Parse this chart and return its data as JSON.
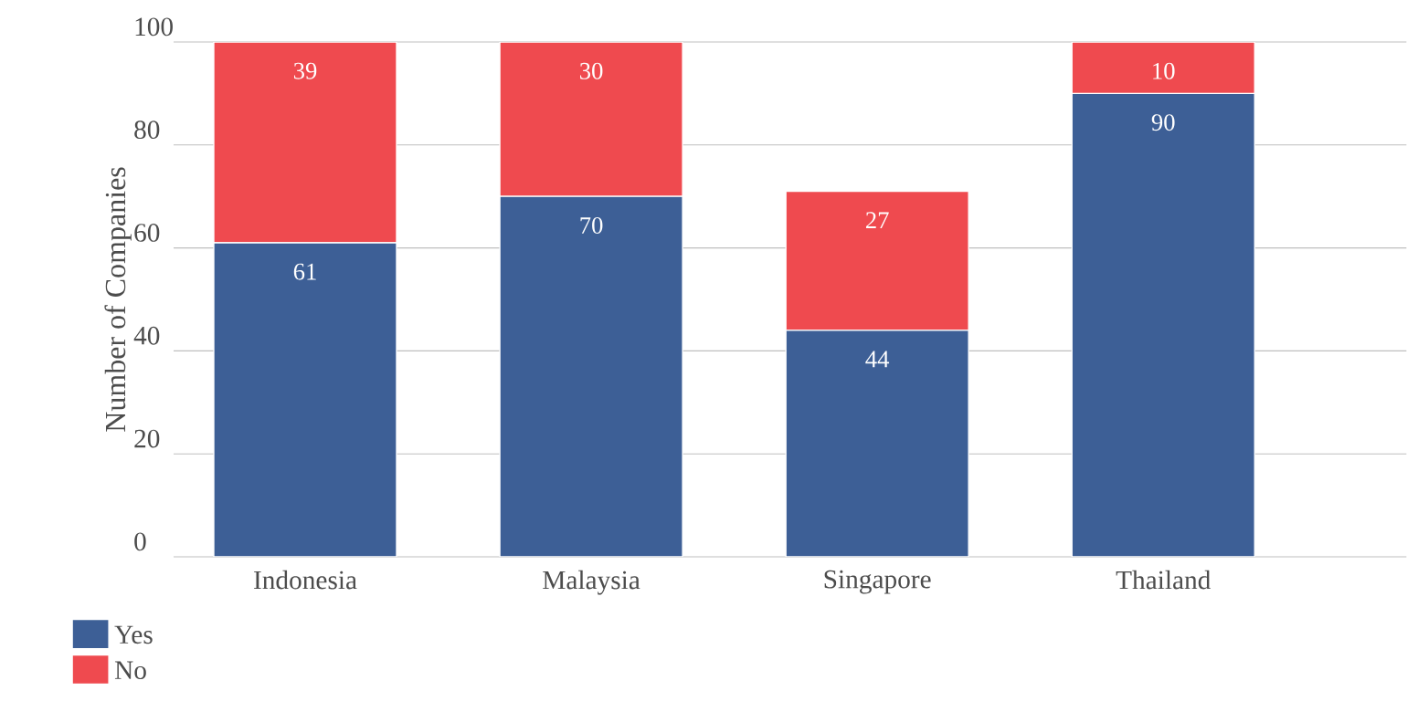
{
  "chart_data": {
    "type": "bar",
    "stacked": true,
    "ylabel": "Number of Companies",
    "categories": [
      "Indonesia",
      "Malaysia",
      "Singapore",
      "Thailand"
    ],
    "series": [
      {
        "name": "Yes",
        "color": "#3d5f96",
        "values": [
          61,
          70,
          44,
          90
        ]
      },
      {
        "name": "No",
        "color": "#ef4a4f",
        "values": [
          39,
          30,
          27,
          10
        ]
      }
    ],
    "ylim": [
      0,
      100
    ],
    "yticks": [
      0,
      20,
      40,
      60,
      80,
      100
    ],
    "grid": "y",
    "legend": "bottom left",
    "data_labels": true
  }
}
